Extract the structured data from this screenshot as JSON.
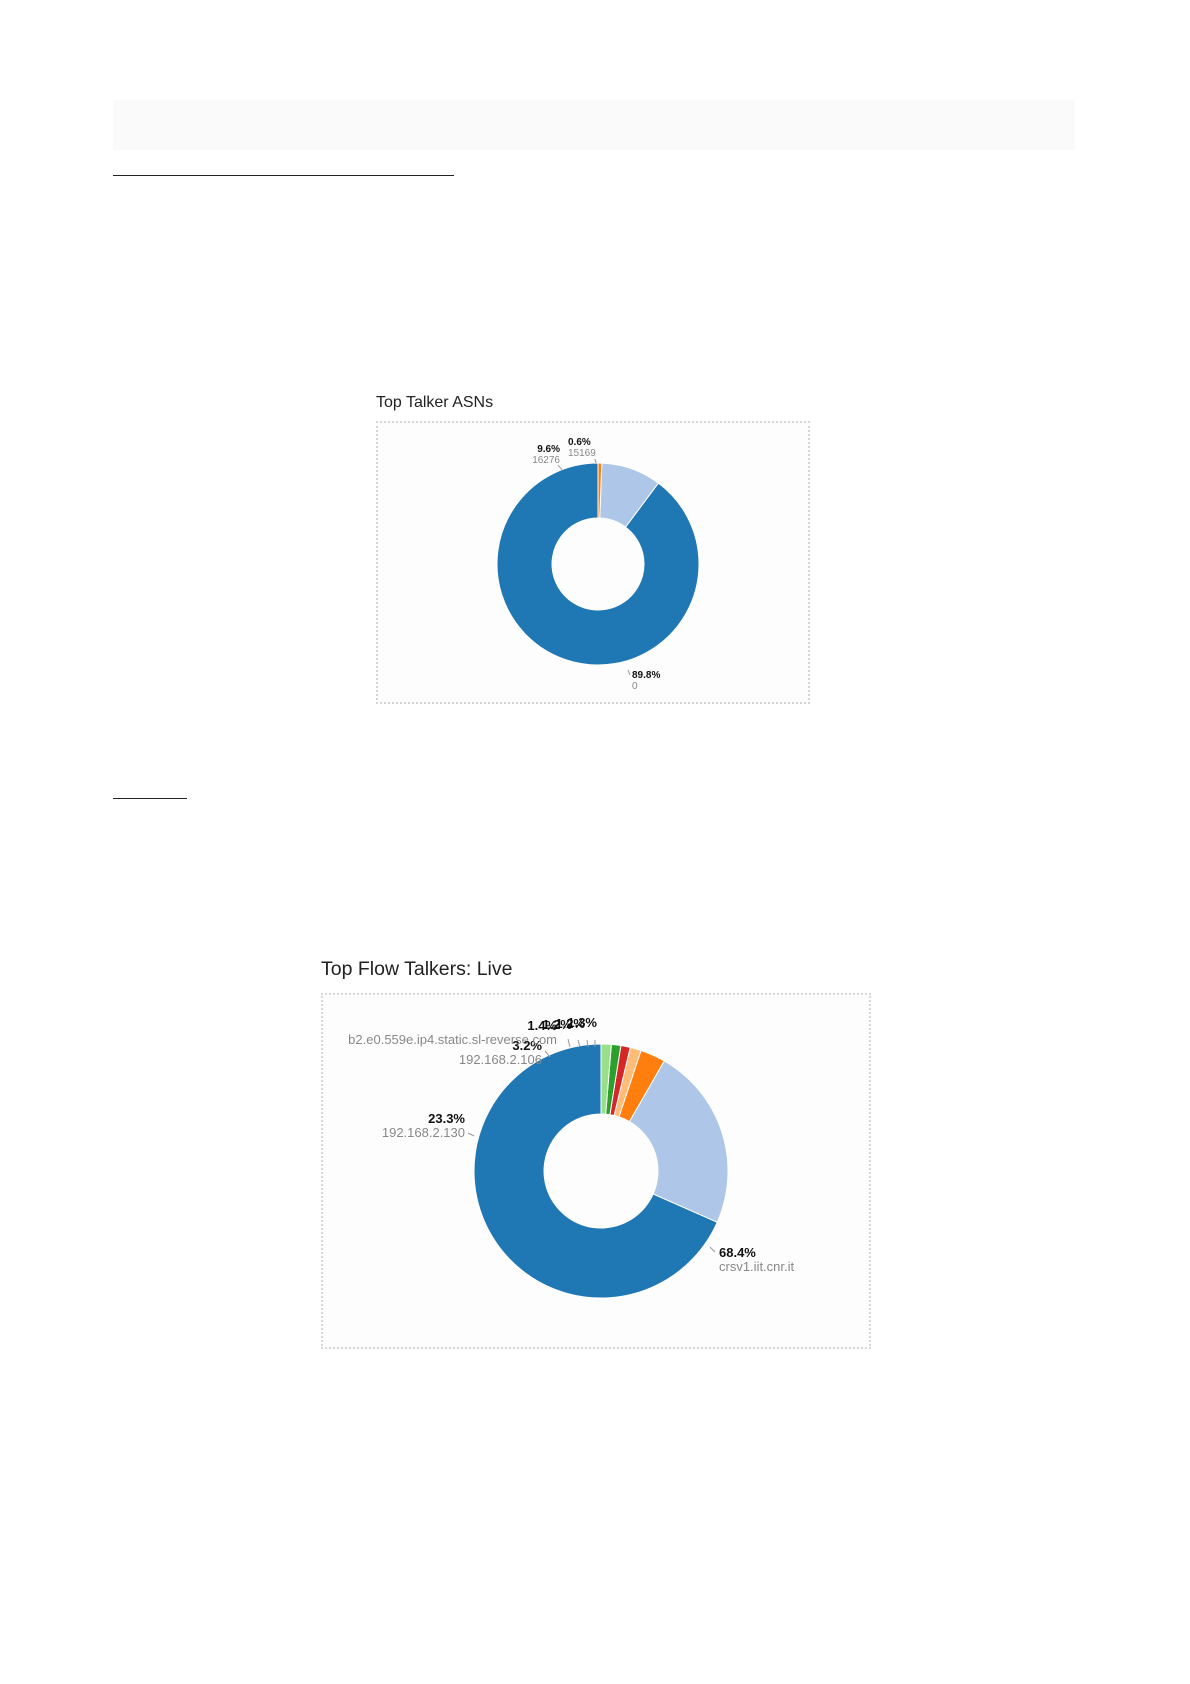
{
  "chart_data": [
    {
      "type": "pie",
      "title": "Top Talker ASNs",
      "donut": true,
      "colors": [
        "#1f77b4",
        "#aec7e8",
        "#ff7f0e"
      ],
      "slices": [
        {
          "label": "0",
          "pct": "89.8%",
          "value": 89.8
        },
        {
          "label": "16276",
          "pct": "9.6%",
          "value": 9.6
        },
        {
          "label": "15169",
          "pct": "0.6%",
          "value": 0.6
        }
      ]
    },
    {
      "type": "pie",
      "title": "Top Flow Talkers: Live",
      "donut": true,
      "colors": [
        "#1f77b4",
        "#aec7e8",
        "#ff7f0e",
        "#ffbb78",
        "#d62728",
        "#2ca02c",
        "#98df8a"
      ],
      "slices": [
        {
          "label": "crsv1.iit.cnr.it",
          "pct": "68.4%",
          "value": 68.4
        },
        {
          "label": "192.168.2.130",
          "pct": "23.3%",
          "value": 23.3
        },
        {
          "label": "192.168.2.106",
          "pct": "3.2%",
          "value": 3.2
        },
        {
          "label": "b2.e0.559e.ip4.static.sl-reverse.com",
          "pct": "1.4%",
          "value": 1.4
        },
        {
          "label": "",
          "pct": "1.2%",
          "value": 1.2
        },
        {
          "label": "",
          "pct": "1.2%",
          "value": 1.2
        },
        {
          "label": "",
          "pct": "1.3%",
          "value": 1.3
        }
      ]
    }
  ]
}
